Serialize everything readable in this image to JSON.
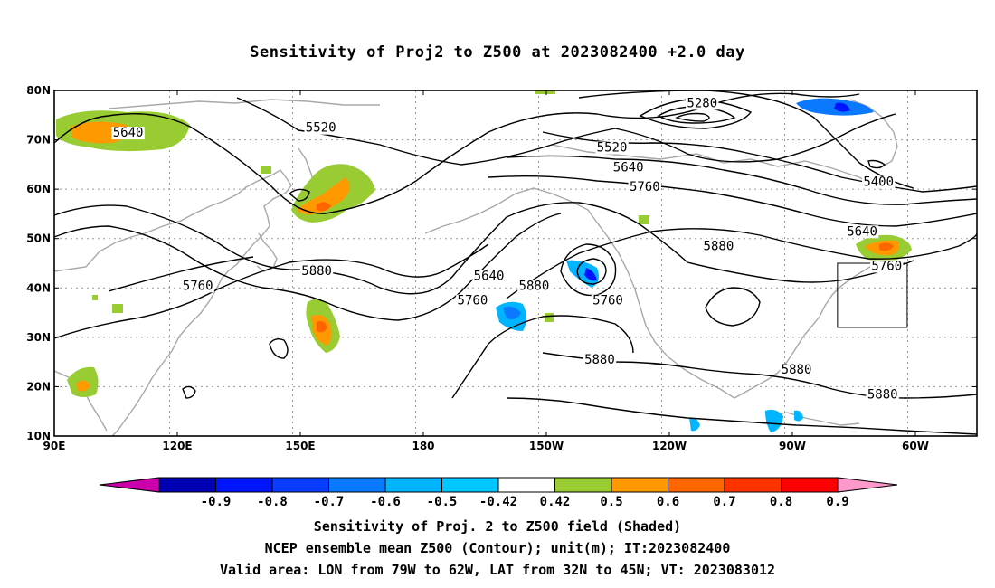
{
  "title": "Sensitivity of Proj2 to Z500 at 2023082400 +2.0 day",
  "lat_labels": [
    "80N",
    "70N",
    "60N",
    "50N",
    "40N",
    "30N",
    "20N",
    "10N"
  ],
  "lon_labels": [
    "90E",
    "120E",
    "150E",
    "180",
    "150W",
    "120W",
    "90W",
    "60W"
  ],
  "contour_labels": [
    {
      "text": "5640",
      "lon": 108,
      "lat": 71
    },
    {
      "text": "5520",
      "lon": 155,
      "lat": 72
    },
    {
      "text": "5280",
      "lon": 248,
      "lat": 77
    },
    {
      "text": "5520",
      "lon": 226,
      "lat": 68
    },
    {
      "text": "5640",
      "lon": 230,
      "lat": 64
    },
    {
      "text": "5760",
      "lon": 234,
      "lat": 60
    },
    {
      "text": "5400",
      "lon": 291,
      "lat": 61
    },
    {
      "text": "5640",
      "lon": 287,
      "lat": 51
    },
    {
      "text": "5760",
      "lon": 293,
      "lat": 44
    },
    {
      "text": "5880",
      "lon": 154,
      "lat": 43
    },
    {
      "text": "5760",
      "lon": 125,
      "lat": 40
    },
    {
      "text": "5640",
      "lon": 196,
      "lat": 42
    },
    {
      "text": "5760",
      "lon": 192,
      "lat": 37
    },
    {
      "text": "5880",
      "lon": 207,
      "lat": 40
    },
    {
      "text": "5760",
      "lon": 225,
      "lat": 37
    },
    {
      "text": "5880",
      "lon": 252,
      "lat": 48
    },
    {
      "text": "5880",
      "lon": 223,
      "lat": 25
    },
    {
      "text": "5880",
      "lon": 271,
      "lat": 23
    },
    {
      "text": "5880",
      "lon": 292,
      "lat": 18
    }
  ],
  "valid_box": {
    "lon_min": -79,
    "lon_max": -62,
    "lat_min": 32,
    "lat_max": 45
  },
  "colorbar": {
    "labels": [
      "-0.9",
      "-0.8",
      "-0.7",
      "-0.6",
      "-0.5",
      "-0.42",
      "0.42",
      "0.5",
      "0.6",
      "0.7",
      "0.8",
      "0.9"
    ],
    "colors": [
      "#cc00aa",
      "#0000b4",
      "#0014ff",
      "#0a3cff",
      "#0a78ff",
      "#00b4ff",
      "#00c8ff",
      "#ffffff",
      "#99cc33",
      "#ff9900",
      "#ff6600",
      "#ff3300",
      "#ff0000",
      "#ff99cc"
    ]
  },
  "captions": [
    "Sensitivity of Proj. 2 to Z500 field (Shaded)",
    "NCEP ensemble mean Z500 (Contour); unit(m); IT:2023082400",
    "Valid area: LON from 79W to 62W, LAT from 32N to 45N; VT: 2023083012"
  ]
}
